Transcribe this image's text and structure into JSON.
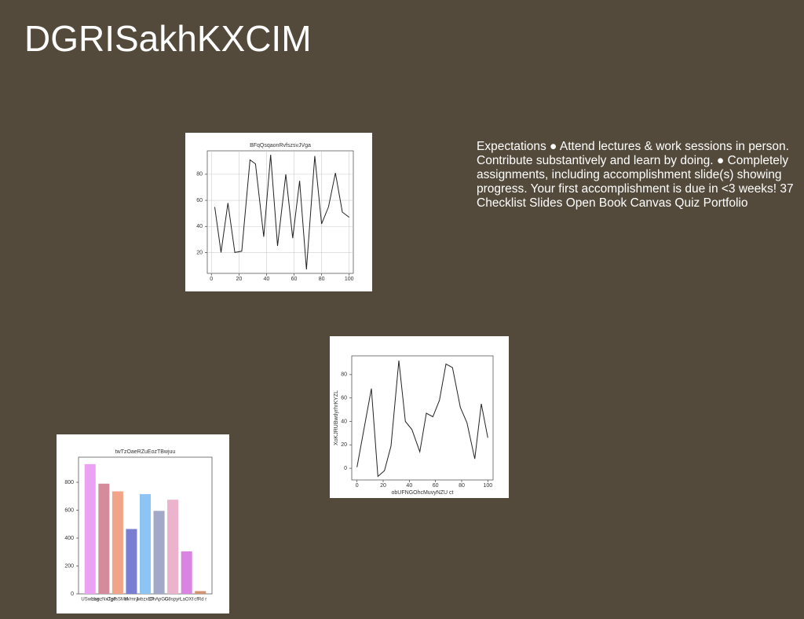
{
  "title": "DGRISakhKXCIM",
  "text": "Expectations ● Attend lectures & work sessions in person. Contribute substantively and learn by doing. ● Completely assignments, including accomplishment slide(s) showing progress. Your first accomplishment is due in <3 weeks! 37 Checklist Slides Open Book Canvas Quiz Portfolio",
  "chart_data": [
    {
      "type": "line",
      "title": "BFqQsqaonRvfszsvJVga",
      "color": "#222222",
      "grid": true,
      "x": [
        2.4,
        7,
        12,
        17,
        22,
        28,
        32,
        38,
        43,
        48,
        54,
        59,
        64,
        69,
        75,
        80,
        85,
        90,
        95,
        100
      ],
      "values": [
        55,
        20,
        58,
        20,
        21,
        91,
        88,
        32,
        95,
        25,
        80,
        31,
        75,
        7,
        94,
        42,
        55,
        81,
        51,
        47
      ],
      "xlim": [
        -3,
        103
      ],
      "ylim": [
        4,
        98
      ],
      "xticks": [
        0,
        20,
        40,
        60,
        80,
        100
      ],
      "yticks": [
        20,
        40,
        60,
        80
      ]
    },
    {
      "type": "line",
      "x_label": "obUFNGOhcMuvyNZU ct",
      "y_label": "XoKJRUBwdyrhrKYZL",
      "color": "#222222",
      "grid": false,
      "x": [
        0,
        11,
        16,
        21,
        26,
        32,
        37,
        42,
        48,
        53,
        58,
        63,
        68,
        73,
        79,
        84,
        90,
        95,
        100
      ],
      "values": [
        1,
        68,
        -7,
        -2,
        19,
        92,
        40,
        33,
        14,
        47,
        44,
        58,
        89,
        86,
        52,
        39,
        8,
        55,
        26
      ],
      "xlim": [
        -4,
        104
      ],
      "ylim": [
        -10,
        96
      ],
      "xticks": [
        0,
        20,
        40,
        60,
        80,
        100
      ],
      "yticks": [
        0,
        20,
        40,
        60,
        80
      ]
    },
    {
      "type": "bar",
      "title": "twTzOaeRZuEozTBwjuu",
      "grid": false,
      "categories": [
        "USwLbg",
        "hwozNxTgP",
        "CpcsSMH",
        "dVmrJ",
        "jwbzxEP",
        "CnApGG",
        "G8spyn",
        "LaOXf",
        "cfRd r"
      ],
      "values": [
        930,
        790,
        735,
        465,
        715,
        595,
        675,
        305,
        20
      ],
      "colors": [
        "#eba2f2",
        "#d48c9c",
        "#f2a488",
        "#7a7ed2",
        "#8cc4f4",
        "#a2a8c8",
        "#ebb4cc",
        "#da84e2",
        "#d49474"
      ],
      "ylim": [
        0,
        980
      ],
      "yticks": [
        0,
        200,
        400,
        600,
        800
      ]
    }
  ]
}
